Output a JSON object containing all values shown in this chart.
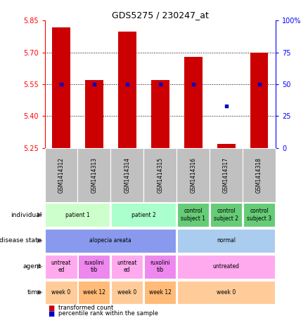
{
  "title": "GDS5275 / 230247_at",
  "samples": [
    "GSM1414312",
    "GSM1414313",
    "GSM1414314",
    "GSM1414315",
    "GSM1414316",
    "GSM1414317",
    "GSM1414318"
  ],
  "bar_values": [
    5.82,
    5.57,
    5.8,
    5.57,
    5.68,
    5.27,
    5.7
  ],
  "bar_bottom": 5.25,
  "percentile_values": [
    50,
    50,
    50,
    50,
    50,
    33,
    50
  ],
  "ylim": [
    5.25,
    5.85
  ],
  "yticks": [
    5.25,
    5.4,
    5.55,
    5.7,
    5.85
  ],
  "y2lim": [
    0,
    100
  ],
  "y2ticks": [
    0,
    25,
    50,
    75,
    100
  ],
  "y2ticklabels": [
    "0",
    "25",
    "50",
    "75",
    "100%"
  ],
  "bar_color": "#cc0000",
  "dot_color": "#0000cc",
  "dotted_line_y": [
    5.7,
    5.55,
    5.4
  ],
  "annotation_rows": [
    {
      "label": "individual",
      "cells": [
        {
          "text": "patient 1",
          "colspan": 2,
          "color": "#ccffcc"
        },
        {
          "text": "patient 2",
          "colspan": 2,
          "color": "#aaffcc"
        },
        {
          "text": "control\nsubject 1",
          "colspan": 1,
          "color": "#66cc77"
        },
        {
          "text": "control\nsubject 2",
          "colspan": 1,
          "color": "#66cc77"
        },
        {
          "text": "control\nsubject 3",
          "colspan": 1,
          "color": "#66cc77"
        }
      ]
    },
    {
      "label": "disease state",
      "cells": [
        {
          "text": "alopecia areata",
          "colspan": 4,
          "color": "#8899ee"
        },
        {
          "text": "normal",
          "colspan": 3,
          "color": "#aaccee"
        }
      ]
    },
    {
      "label": "agent",
      "cells": [
        {
          "text": "untreat\ned",
          "colspan": 1,
          "color": "#ffaaee"
        },
        {
          "text": "ruxolini\ntib",
          "colspan": 1,
          "color": "#ee88ee"
        },
        {
          "text": "untreat\ned",
          "colspan": 1,
          "color": "#ffaaee"
        },
        {
          "text": "ruxolini\ntib",
          "colspan": 1,
          "color": "#ee88ee"
        },
        {
          "text": "untreated",
          "colspan": 3,
          "color": "#ffaaee"
        }
      ]
    },
    {
      "label": "time",
      "cells": [
        {
          "text": "week 0",
          "colspan": 1,
          "color": "#ffcc99"
        },
        {
          "text": "week 12",
          "colspan": 1,
          "color": "#ffbb77"
        },
        {
          "text": "week 0",
          "colspan": 1,
          "color": "#ffcc99"
        },
        {
          "text": "week 12",
          "colspan": 1,
          "color": "#ffbb77"
        },
        {
          "text": "week 0",
          "colspan": 3,
          "color": "#ffcc99"
        }
      ]
    }
  ],
  "legend_items": [
    {
      "color": "#cc0000",
      "label": "transformed count"
    },
    {
      "color": "#0000cc",
      "label": "percentile rank within the sample"
    }
  ],
  "gsm_bg_color": "#c0c0c0",
  "chart_border_color": "#aaaaaa"
}
